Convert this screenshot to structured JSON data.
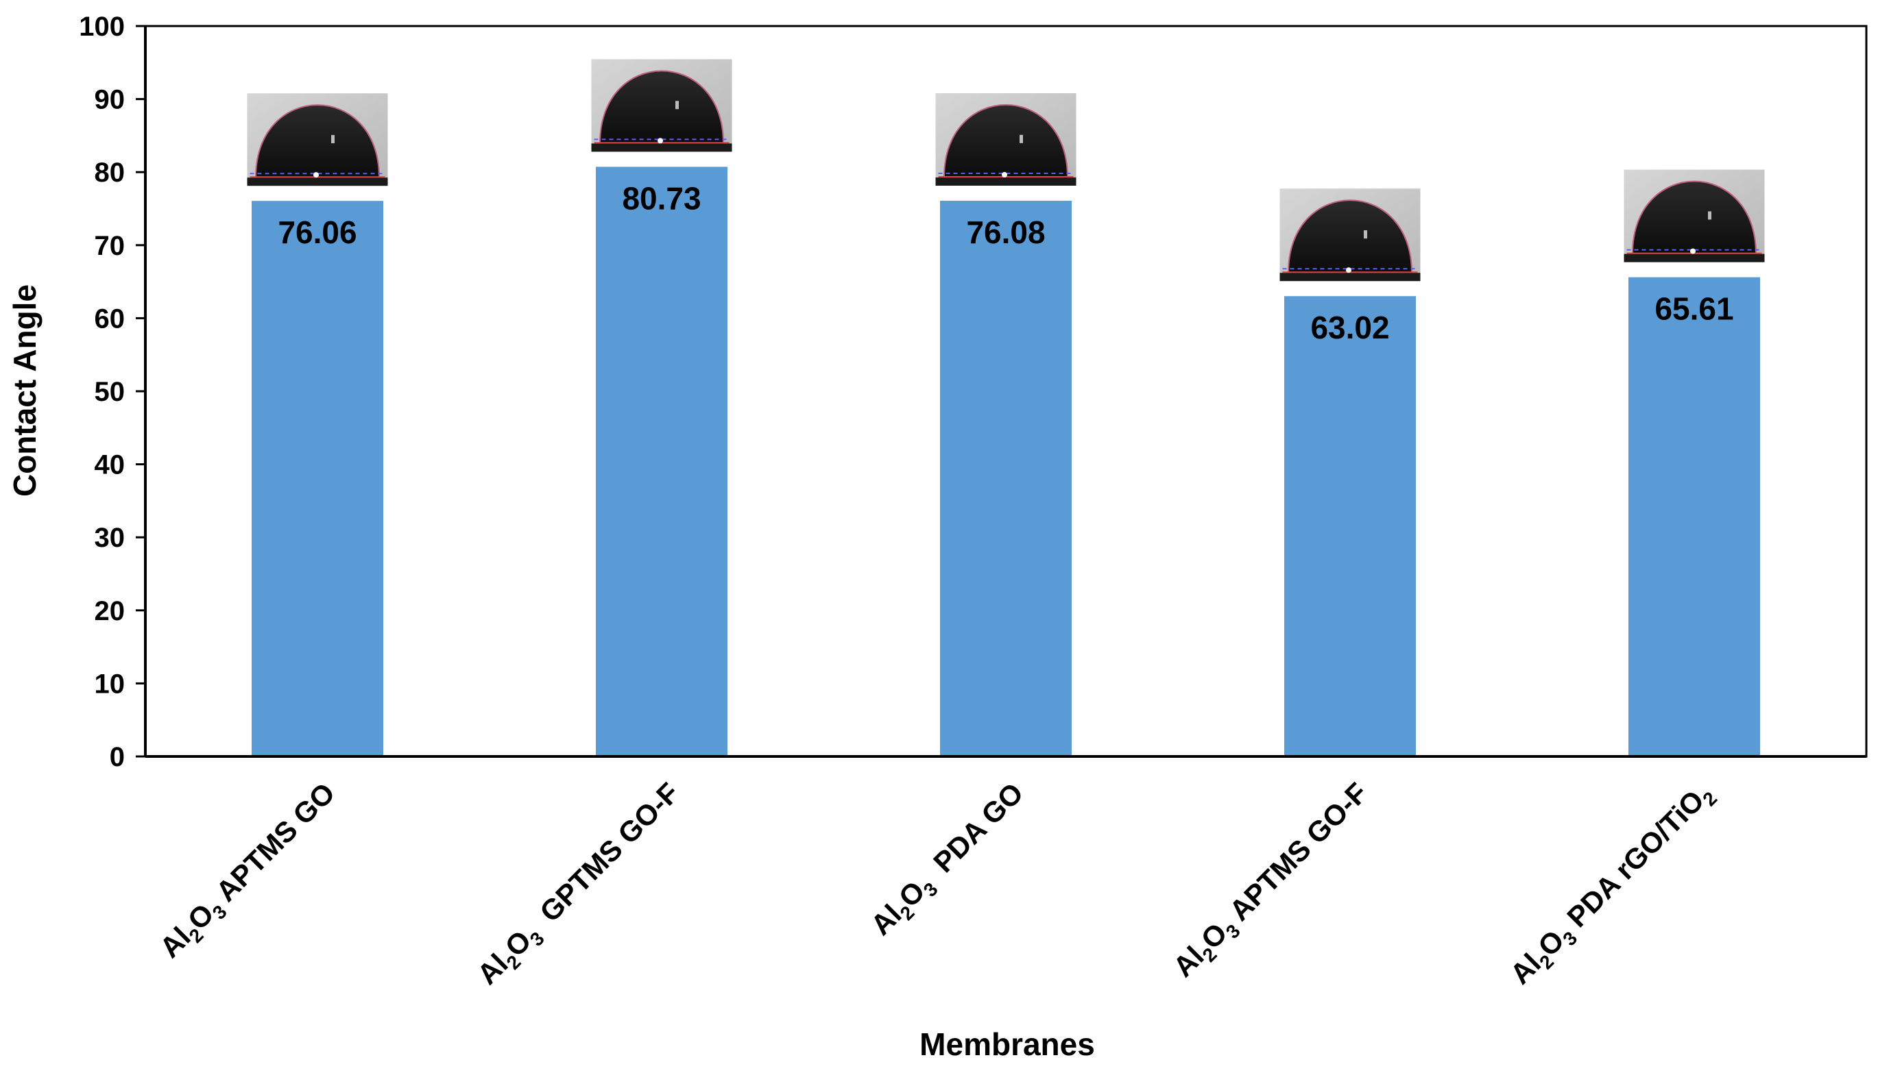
{
  "chart_data": {
    "type": "bar",
    "title": "",
    "xlabel": "Membranes",
    "ylabel": "Contact Angle",
    "ylim": [
      0,
      100
    ],
    "yticks": [
      0,
      10,
      20,
      30,
      40,
      50,
      60,
      70,
      80,
      90,
      100
    ],
    "grid": false,
    "bar_color": "#5b9bd5",
    "categories": [
      {
        "prefix": "Al",
        "sub1": "2",
        "mid": "O",
        "sub2": "3",
        "rest": " APTMS GO",
        "rest_sub": ""
      },
      {
        "prefix": "Al",
        "sub1": "2",
        "mid": "O",
        "sub2": "3",
        "rest": "  GPTMS GO-F",
        "rest_sub": ""
      },
      {
        "prefix": "Al",
        "sub1": "2",
        "mid": "O",
        "sub2": "3",
        "rest": "  PDA GO",
        "rest_sub": ""
      },
      {
        "prefix": "Al",
        "sub1": "2",
        "mid": "O",
        "sub2": "3",
        "rest": " APTMS GO-F",
        "rest_sub": ""
      },
      {
        "prefix": "Al",
        "sub1": "2",
        "mid": "O",
        "sub2": "3",
        "rest": " PDA rGO/TiO",
        "rest_sub": "2"
      }
    ],
    "category_names": [
      "Al2O3 APTMS GO",
      "Al2O3 GPTMS GO-F",
      "Al2O3 PDA GO",
      "Al2O3 APTMS GO-F",
      "Al2O3 PDA rGO/TiO2"
    ],
    "values": [
      76.06,
      80.73,
      76.08,
      63.02,
      65.61
    ],
    "value_labels": [
      "76.06",
      "80.73",
      "76.08",
      "63.02",
      "65.61"
    ]
  }
}
